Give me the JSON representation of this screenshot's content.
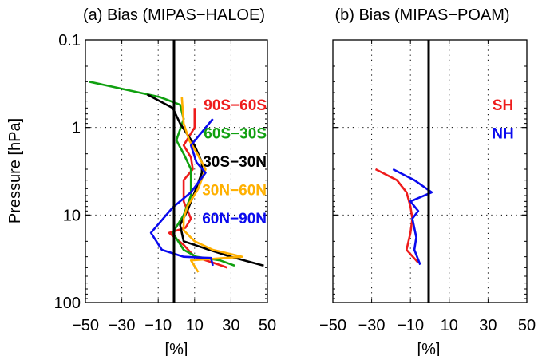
{
  "chart_data": [
    {
      "type": "line",
      "title": "(a) Bias (MIPAS−HALOE)",
      "xlabel": "[%]",
      "ylabel": "Pressure [hPa]",
      "xlim": [
        -50,
        50
      ],
      "ylim": [
        100,
        0.1
      ],
      "y_scale": "log",
      "x_ticks": [
        "−50",
        "−30",
        "−10",
        "10",
        "30",
        "50"
      ],
      "x_tick_values": [
        -50,
        -30,
        -10,
        10,
        30,
        50
      ],
      "y_ticks": [
        "0.1",
        "1",
        "10",
        "100"
      ],
      "y_tick_values": [
        0.1,
        1,
        10,
        100
      ],
      "grid": "vertical dotted",
      "reference_line_x": 0,
      "legend_placement": "right",
      "series": [
        {
          "name": "90S−60S",
          "color": "#ee1c1c",
          "x": [
            10,
            10,
            4,
            8,
            9,
            4,
            4,
            8,
            5,
            -4,
            4,
            10,
            20,
            28
          ],
          "y": [
            0.6,
            1.0,
            1.6,
            2.2,
            3.0,
            4.0,
            7.0,
            11.0,
            14.0,
            16.0,
            22.0,
            30.0,
            35.0,
            40.0
          ]
        },
        {
          "name": "60S−30S",
          "color": "#10a010",
          "x": [
            -48,
            -9,
            2,
            4,
            0,
            4,
            8,
            8,
            4,
            -2,
            4,
            11,
            24,
            32
          ],
          "y": [
            0.3,
            0.45,
            0.55,
            0.8,
            1.4,
            2.0,
            3.0,
            6.0,
            10.0,
            16.0,
            25.0,
            30.0,
            33.0,
            38.0
          ]
        },
        {
          "name": "30S−30N",
          "color": "#000000",
          "x": [
            -16,
            -2,
            2,
            10,
            14,
            14,
            10,
            6,
            2,
            4,
            18,
            30,
            48
          ],
          "y": [
            0.42,
            0.6,
            0.9,
            1.6,
            2.5,
            3.3,
            5.5,
            9.0,
            13.0,
            20.0,
            25.0,
            30.0,
            38.0
          ]
        },
        {
          "name": "30N−60N",
          "color": "#ffb000",
          "x": [
            3,
            4,
            7,
            12,
            16,
            12,
            6,
            4,
            4,
            10,
            20,
            36,
            8,
            12
          ],
          "y": [
            0.45,
            0.9,
            1.4,
            2.1,
            3.0,
            5.0,
            8.0,
            11.0,
            15.0,
            20.0,
            25.0,
            30.0,
            33.0,
            45.0
          ]
        },
        {
          "name": "60N−90N",
          "color": "#0a0aee",
          "x": [
            20,
            8,
            11,
            16,
            8,
            -2,
            -14,
            -8,
            4,
            19,
            20
          ],
          "y": [
            0.8,
            1.6,
            2.5,
            3.3,
            5.5,
            8.2,
            16.0,
            25.0,
            30.0,
            31.0,
            38.0
          ]
        }
      ]
    },
    {
      "type": "line",
      "title": "(b) Bias (MIPAS−POAM)",
      "xlabel": "[%]",
      "ylim": [
        100,
        0.1
      ],
      "xlim": [
        -50,
        50
      ],
      "y_scale": "log",
      "x_ticks": [
        "−50",
        "−30",
        "−10",
        "10",
        "30",
        "50"
      ],
      "x_tick_values": [
        -50,
        -30,
        -10,
        10,
        30,
        50
      ],
      "grid": "vertical dotted",
      "reference_line_x": 0,
      "legend_placement": "top-right",
      "series": [
        {
          "name": "SH",
          "color": "#ee1c1c",
          "x": [
            -28,
            -17,
            -12,
            -10,
            -9,
            -10,
            -12,
            -6
          ],
          "y": [
            3.0,
            4.0,
            5.5,
            8.0,
            11.0,
            16.0,
            25.0,
            35.0
          ]
        },
        {
          "name": "NH",
          "color": "#0a0aee",
          "x": [
            -19,
            -8,
            1,
            -10,
            -6,
            -9,
            -7,
            -8,
            -5
          ],
          "y": [
            3.0,
            4.0,
            5.5,
            7.0,
            9.0,
            11.0,
            18.0,
            25.0,
            37.0
          ]
        }
      ]
    }
  ]
}
